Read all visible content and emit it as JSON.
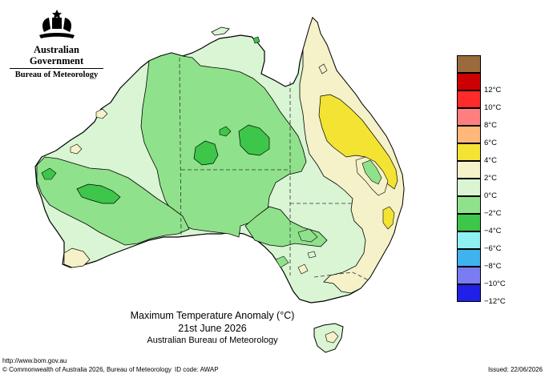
{
  "header": {
    "org_line1": "Australian Government",
    "org_line2": "Bureau of Meteorology"
  },
  "title": {
    "line1": "Maximum Temperature Anomaly (°C)",
    "line2": "21st June 2026",
    "line3": "Australian Bureau of Meteorology"
  },
  "footer": {
    "url": "http://www.bom.gov.au",
    "copyright": "© Commonwealth of Australia 2026, Bureau of Meteorology",
    "id_code": "ID code: AWAP",
    "issued": "Issued: 22/06/2026"
  },
  "legend": {
    "items": [
      {
        "label": "",
        "color": "#9b6a3c"
      },
      {
        "label": "12°C",
        "color": "#cc0000"
      },
      {
        "label": "10°C",
        "color": "#ff2a2a"
      },
      {
        "label": "8°C",
        "color": "#ff7f7f"
      },
      {
        "label": "6°C",
        "color": "#ffb87a"
      },
      {
        "label": "4°C",
        "color": "#f3e333"
      },
      {
        "label": "2°C",
        "color": "#f5f1c8"
      },
      {
        "label": "0°C",
        "color": "#d9f5d4"
      },
      {
        "label": "−2°C",
        "color": "#8fe28b"
      },
      {
        "label": "−4°C",
        "color": "#3dc64a"
      },
      {
        "label": "−6°C",
        "color": "#8ef0f0"
      },
      {
        "label": "−8°C",
        "color": "#3fb3ee"
      },
      {
        "label": "−10°C",
        "color": "#7c7cf2"
      },
      {
        "label": "−12°C",
        "color": "#2020e8"
      }
    ]
  },
  "colors": {
    "pale_yellow": "#f5f1c8",
    "yellow": "#f3e333",
    "light_green": "#d9f5d4",
    "green": "#8fe28b",
    "dark_green": "#3dc64a"
  }
}
